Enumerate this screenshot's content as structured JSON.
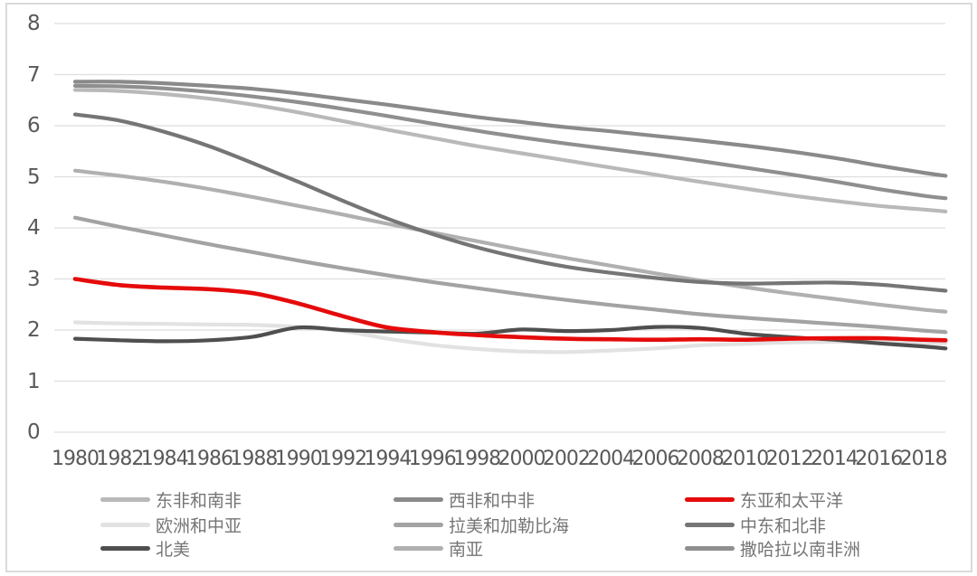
{
  "chart_data": {
    "type": "line",
    "title": "",
    "xlabel": "",
    "ylabel": "",
    "ylim": [
      0,
      8
    ],
    "yticks": [
      "0",
      "1",
      "2",
      "3",
      "4",
      "5",
      "6",
      "7",
      "8"
    ],
    "grid": true,
    "legend_position": "bottom",
    "x": [
      1980,
      1982,
      1984,
      1986,
      1988,
      1990,
      1992,
      1994,
      1996,
      1998,
      2000,
      2002,
      2004,
      2006,
      2008,
      2010,
      2012,
      2014,
      2016,
      2018,
      2019
    ],
    "xtick_labels": [
      "1980",
      "1982",
      "1984",
      "1986",
      "1988",
      "1990",
      "1992",
      "1994",
      "1996",
      "1998",
      "2000",
      "2002",
      "2004",
      "2006",
      "2008",
      "2010",
      "2012",
      "2014",
      "2016",
      "2018"
    ],
    "series": [
      {
        "name": "东非和南非",
        "color": "#b9b9b9",
        "width": 4.2,
        "values": [
          6.7,
          6.68,
          6.62,
          6.53,
          6.41,
          6.26,
          6.09,
          5.92,
          5.76,
          5.6,
          5.46,
          5.32,
          5.18,
          5.04,
          4.9,
          4.77,
          4.64,
          4.53,
          4.43,
          4.36,
          4.32
        ]
      },
      {
        "name": "欧洲和中亚",
        "color": "#e2e2e2",
        "width": 4.2,
        "values": [
          2.15,
          2.13,
          2.12,
          2.11,
          2.1,
          2.06,
          1.98,
          1.83,
          1.71,
          1.63,
          1.58,
          1.57,
          1.6,
          1.64,
          1.7,
          1.73,
          1.76,
          1.77,
          1.77,
          1.75,
          1.74
        ]
      },
      {
        "name": "北美",
        "color": "#4f4f4f",
        "width": 4.2,
        "values": [
          1.83,
          1.8,
          1.78,
          1.8,
          1.87,
          2.05,
          2.0,
          1.97,
          1.95,
          1.93,
          2.01,
          1.98,
          2.0,
          2.06,
          2.04,
          1.93,
          1.86,
          1.81,
          1.74,
          1.68,
          1.64
        ]
      },
      {
        "name": "西非和中非",
        "color": "#8a8a8a",
        "width": 4.2,
        "values": [
          6.86,
          6.86,
          6.83,
          6.78,
          6.72,
          6.63,
          6.52,
          6.41,
          6.29,
          6.17,
          6.07,
          5.97,
          5.89,
          5.8,
          5.71,
          5.61,
          5.5,
          5.37,
          5.22,
          5.08,
          5.02
        ]
      },
      {
        "name": "拉美和加勒比海",
        "color": "#a3a3a3",
        "width": 4.2,
        "values": [
          4.2,
          4.02,
          3.85,
          3.68,
          3.52,
          3.36,
          3.21,
          3.07,
          2.94,
          2.82,
          2.7,
          2.59,
          2.49,
          2.4,
          2.31,
          2.24,
          2.18,
          2.12,
          2.06,
          1.99,
          1.96
        ]
      },
      {
        "name": "南亚",
        "color": "#b0b0b0",
        "width": 4.2,
        "values": [
          5.12,
          5.02,
          4.9,
          4.76,
          4.6,
          4.43,
          4.26,
          4.08,
          3.91,
          3.74,
          3.57,
          3.41,
          3.26,
          3.11,
          2.97,
          2.84,
          2.72,
          2.61,
          2.5,
          2.4,
          2.36
        ]
      },
      {
        "name": "东亚和太平洋",
        "color": "#e50b0b",
        "width": 4.6,
        "values": [
          3.0,
          2.88,
          2.83,
          2.8,
          2.72,
          2.52,
          2.27,
          2.05,
          1.96,
          1.9,
          1.86,
          1.83,
          1.82,
          1.81,
          1.82,
          1.81,
          1.83,
          1.84,
          1.84,
          1.81,
          1.8
        ]
      },
      {
        "name": "中东和北非",
        "color": "#757575",
        "width": 4.2,
        "values": [
          6.22,
          6.1,
          5.88,
          5.6,
          5.26,
          4.9,
          4.53,
          4.18,
          3.88,
          3.62,
          3.41,
          3.24,
          3.12,
          3.02,
          2.94,
          2.91,
          2.92,
          2.93,
          2.89,
          2.81,
          2.77
        ]
      },
      {
        "name": "撒哈拉以南非洲",
        "color": "#8f8f8f",
        "width": 4.2,
        "values": [
          6.78,
          6.77,
          6.73,
          6.66,
          6.57,
          6.46,
          6.33,
          6.19,
          6.04,
          5.9,
          5.77,
          5.65,
          5.54,
          5.43,
          5.31,
          5.18,
          5.05,
          4.91,
          4.76,
          4.63,
          4.58
        ]
      }
    ],
    "legend_rows": [
      [
        "东非和南非",
        "西非和中非",
        "东亚和太平洋"
      ],
      [
        "欧洲和中亚",
        "拉美和加勒比海",
        "中东和北非"
      ],
      [
        "北美",
        "南亚",
        "撒哈拉以南非洲"
      ]
    ],
    "colors": {
      "accent_red": "#e50b0b",
      "grid": "#dedede",
      "tick_text": "#595959",
      "legend_text": "#757575"
    }
  }
}
